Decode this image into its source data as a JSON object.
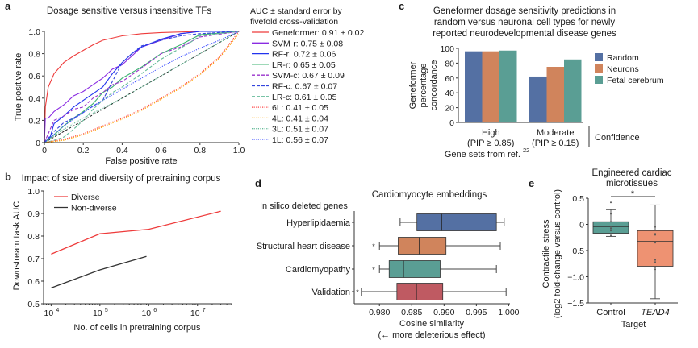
{
  "chart_data": [
    {
      "panel": "a",
      "type": "line",
      "title": "Dosage sensitive versus insensitive TFs",
      "xlabel": "False positive rate",
      "ylabel": "True positive rate",
      "xlim": [
        0,
        1
      ],
      "ylim": [
        0,
        1
      ],
      "xticks": [
        "0",
        "0.2",
        "0.4",
        "0.6",
        "0.8",
        "1.0"
      ],
      "yticks": [
        "0",
        "0.2",
        "0.4",
        "0.6",
        "0.8",
        "1.0"
      ],
      "legend_title": [
        "AUC ± standard error by",
        "fivefold cross-validation"
      ],
      "legend_position": "right",
      "diagonal": true,
      "series": [
        {
          "name": "Geneformer: 0.91 ± 0.02",
          "color": "#ee3b3b",
          "style": "solid",
          "x": [
            0,
            0.005,
            0.02,
            0.05,
            0.1,
            0.15,
            0.2,
            0.25,
            0.3,
            0.4,
            0.5,
            0.6,
            0.8,
            1.0
          ],
          "y": [
            0,
            0.32,
            0.5,
            0.62,
            0.72,
            0.78,
            0.83,
            0.88,
            0.92,
            0.96,
            0.98,
            0.99,
            1.0,
            1.0
          ]
        },
        {
          "name": "SVM-r: 0.75 ± 0.08",
          "color": "#8a2be2",
          "style": "solid",
          "x": [
            0,
            0.005,
            0.02,
            0.05,
            0.1,
            0.15,
            0.2,
            0.25,
            0.3,
            0.35,
            0.4,
            0.5,
            0.6,
            0.7,
            0.8,
            1.0
          ],
          "y": [
            0,
            0.22,
            0.22,
            0.28,
            0.34,
            0.42,
            0.46,
            0.52,
            0.58,
            0.66,
            0.7,
            0.86,
            0.92,
            0.98,
            1.0,
            1.0
          ]
        },
        {
          "name": "RF-r: 0.72 ± 0.06",
          "color": "#2233ee",
          "style": "solid",
          "x": [
            0,
            0.03,
            0.05,
            0.1,
            0.15,
            0.2,
            0.25,
            0.3,
            0.35,
            0.4,
            0.45,
            0.5,
            0.6,
            0.7,
            0.8,
            1.0
          ],
          "y": [
            0,
            0.05,
            0.17,
            0.24,
            0.32,
            0.38,
            0.44,
            0.5,
            0.62,
            0.72,
            0.8,
            0.86,
            0.93,
            0.98,
            1.0,
            1.0
          ]
        },
        {
          "name": "LR-r: 0.65 ± 0.05",
          "color": "#3cb371",
          "style": "solid",
          "x": [
            0,
            0.05,
            0.1,
            0.15,
            0.2,
            0.25,
            0.3,
            0.35,
            0.4,
            0.5,
            0.6,
            0.7,
            0.8,
            1.0
          ],
          "y": [
            0,
            0.07,
            0.15,
            0.22,
            0.28,
            0.35,
            0.45,
            0.5,
            0.58,
            0.68,
            0.8,
            0.88,
            0.97,
            1.0
          ]
        },
        {
          "name": "SVM-c: 0.67 ± 0.09",
          "color": "#9932cc",
          "style": "dashed",
          "x": [
            0,
            0.05,
            0.1,
            0.15,
            0.2,
            0.25,
            0.3,
            0.35,
            0.4,
            0.5,
            0.6,
            0.7,
            0.8,
            1.0
          ],
          "y": [
            0,
            0.2,
            0.24,
            0.3,
            0.32,
            0.4,
            0.45,
            0.52,
            0.55,
            0.67,
            0.8,
            0.86,
            0.95,
            1.0
          ]
        },
        {
          "name": "RF-c: 0.67 ± 0.07",
          "color": "#3344dd",
          "style": "dashed",
          "x": [
            0,
            0.05,
            0.1,
            0.15,
            0.2,
            0.25,
            0.3,
            0.35,
            0.4,
            0.45,
            0.5,
            0.6,
            0.7,
            0.8,
            1.0
          ],
          "y": [
            0,
            0.1,
            0.18,
            0.22,
            0.27,
            0.33,
            0.38,
            0.55,
            0.72,
            0.8,
            0.87,
            0.92,
            0.96,
            0.98,
            1.0
          ]
        },
        {
          "name": "LR-c: 0.61 ± 0.05",
          "color": "#66bb99",
          "style": "dashed",
          "x": [
            0,
            0.05,
            0.1,
            0.15,
            0.2,
            0.25,
            0.3,
            0.35,
            0.4,
            0.5,
            0.6,
            0.7,
            0.75,
            0.8,
            1.0
          ],
          "y": [
            0,
            0.02,
            0.05,
            0.12,
            0.2,
            0.3,
            0.38,
            0.45,
            0.5,
            0.62,
            0.75,
            0.85,
            0.9,
            0.96,
            1.0
          ]
        },
        {
          "name": "6L: 0.41 ± 0.05",
          "color": "#ff4444",
          "style": "dotted",
          "x": [
            0,
            0.1,
            0.2,
            0.3,
            0.4,
            0.5,
            0.6,
            0.7,
            0.8,
            0.9,
            1.0
          ],
          "y": [
            0,
            0.03,
            0.08,
            0.15,
            0.22,
            0.3,
            0.4,
            0.5,
            0.62,
            0.77,
            1.0
          ]
        },
        {
          "name": "4L: 0.41 ± 0.04",
          "color": "#ffa500",
          "style": "dotted",
          "x": [
            0,
            0.1,
            0.2,
            0.3,
            0.4,
            0.5,
            0.6,
            0.7,
            0.8,
            0.9,
            1.0
          ],
          "y": [
            0,
            0.02,
            0.07,
            0.14,
            0.21,
            0.29,
            0.39,
            0.49,
            0.61,
            0.76,
            0.98
          ]
        },
        {
          "name": "3L: 0.51 ± 0.07",
          "color": "#66bb99",
          "style": "dotted",
          "x": [
            0,
            0.1,
            0.2,
            0.3,
            0.4,
            0.5,
            0.6,
            0.7,
            0.8,
            0.9,
            1.0
          ],
          "y": [
            0,
            0.12,
            0.22,
            0.31,
            0.4,
            0.5,
            0.6,
            0.7,
            0.8,
            0.9,
            1.0
          ]
        },
        {
          "name": "1L: 0.56 ± 0.07",
          "color": "#4455ff",
          "style": "dotted",
          "x": [
            0,
            0.1,
            0.2,
            0.3,
            0.4,
            0.5,
            0.6,
            0.7,
            0.8,
            0.9,
            1.0
          ],
          "y": [
            0,
            0.15,
            0.27,
            0.38,
            0.48,
            0.58,
            0.68,
            0.77,
            0.85,
            0.92,
            1.0
          ]
        }
      ]
    },
    {
      "panel": "b",
      "type": "line",
      "title": "Impact of size and diversity of pretraining corpus",
      "xlabel": "No. of cells in pretraining corpus",
      "ylabel": "Downstream task AUC",
      "xscale": "log",
      "xlim": [
        7000,
        50000000
      ],
      "ylim": [
        0.5,
        1.0
      ],
      "xticks": [
        {
          "base": "10",
          "exp": "4"
        },
        {
          "base": "10",
          "exp": "5"
        },
        {
          "base": "10",
          "exp": "6"
        },
        {
          "base": "10",
          "exp": "7"
        }
      ],
      "xtick_values": [
        10000,
        100000,
        1000000,
        10000000
      ],
      "yticks": [
        "0.5",
        "0.6",
        "0.7",
        "0.8",
        "0.9",
        "1.0"
      ],
      "legend_position": "top-left",
      "series": [
        {
          "name": "Diverse",
          "color": "#ee3b3b",
          "x": [
            10000,
            100000,
            1000000,
            30000000
          ],
          "y": [
            0.72,
            0.81,
            0.83,
            0.91
          ]
        },
        {
          "name": "Non-diverse",
          "color": "#333333",
          "x": [
            10000,
            100000,
            900000
          ],
          "y": [
            0.57,
            0.65,
            0.71
          ]
        }
      ]
    },
    {
      "panel": "c",
      "type": "bar",
      "title": [
        "Geneformer dosage sensitivity predictions in",
        "random versus neuronal cell types for newly",
        "reported neurodevelopmental disease genes"
      ],
      "ylabel": [
        "Geneformer",
        "percentage",
        "concordance"
      ],
      "xlabel": "Gene sets from ref.",
      "xlabel_superscript": "22",
      "group_label": "Confidence",
      "categories": [
        [
          "High",
          "(PIP ≥ 0.85)"
        ],
        [
          "Moderate",
          "(PIP ≥ 0.15)"
        ]
      ],
      "ylim": [
        0,
        100
      ],
      "yticks": [
        "0",
        "20",
        "40",
        "60",
        "80",
        "100"
      ],
      "legend_position": "right",
      "series": [
        {
          "name": "Random",
          "color": "#5470a3",
          "values": [
            96,
            62
          ]
        },
        {
          "name": "Neurons",
          "color": "#d0845c",
          "values": [
            96,
            75
          ]
        },
        {
          "name": "Fetal cerebrum",
          "color": "#5a9e94",
          "values": [
            97,
            85
          ]
        }
      ]
    },
    {
      "panel": "d",
      "type": "box",
      "orientation": "horizontal",
      "title": "Cardiomyocyte embeddings",
      "group_title": "In silico deleted genes",
      "xlabel": [
        "Cosine similarity",
        "(← more deleterious effect)"
      ],
      "xlim": [
        0.9761,
        1.0002
      ],
      "xticks": [
        "0.980",
        "0.985",
        "0.990",
        "0.995",
        "1.000"
      ],
      "xtick_values": [
        0.98,
        0.985,
        0.99,
        0.995,
        1.0
      ],
      "boxes": [
        {
          "name": "Hyperlipidaemia",
          "color": "#5470a3",
          "whisker_low": 0.9832,
          "q1": 0.9858,
          "median": 0.9896,
          "q3": 0.9981,
          "whisker_high": 0.9993,
          "outliers": []
        },
        {
          "name": "Structural heart disease",
          "color": "#d0845c",
          "whisker_low": 0.98,
          "q1": 0.9829,
          "median": 0.9862,
          "q3": 0.9903,
          "whisker_high": 0.9987,
          "outliers": [
            0.9791
          ]
        },
        {
          "name": "Cardiomyopathy",
          "color": "#5a9e94",
          "whisker_low": 0.98,
          "q1": 0.9815,
          "median": 0.9837,
          "q3": 0.9894,
          "whisker_high": 0.9981,
          "outliers": [
            0.9791
          ]
        },
        {
          "name": "Validation",
          "color": "#bf5a62",
          "whisker_low": 0.9772,
          "q1": 0.9827,
          "median": 0.9857,
          "q3": 0.9898,
          "whisker_high": 0.9996,
          "outliers": [
            0.9766
          ]
        }
      ]
    },
    {
      "panel": "e",
      "type": "box",
      "orientation": "vertical",
      "title": [
        "Engineered cardiac",
        "microtissues"
      ],
      "ylabel": [
        "Contractile stress",
        "(log2 fold-change versus control)"
      ],
      "xlabel": "Target",
      "ylim": [
        -1.5,
        0.5
      ],
      "yticks": [
        "0.5",
        "0",
        "−0.5",
        "−1.0",
        "−1.5"
      ],
      "ytick_values": [
        0.5,
        0,
        -0.5,
        -1.0,
        -1.5
      ],
      "significance": "*",
      "boxes": [
        {
          "name": "Control",
          "italic": false,
          "color": "#5a9e94",
          "whisker_low": -0.23,
          "q1": -0.17,
          "median": -0.04,
          "q3": 0.05,
          "whisker_high": 0.28,
          "points": [
            0.42,
            0.2,
            0.05,
            -0.05,
            -0.08,
            -0.12,
            -0.18,
            -0.22
          ]
        },
        {
          "name": "TEAD4",
          "italic": true,
          "color": "#ee9272",
          "whisker_low": -1.42,
          "q1": -0.8,
          "median": -0.33,
          "q3": -0.12,
          "whisker_high": 0.37,
          "points": [
            -0.05,
            -0.18,
            -0.2,
            -0.35,
            -0.68,
            -0.72,
            -0.82,
            -0.86
          ]
        }
      ]
    }
  ],
  "labels": {
    "a": "a",
    "b": "b",
    "c": "c",
    "d": "d",
    "e": "e"
  }
}
